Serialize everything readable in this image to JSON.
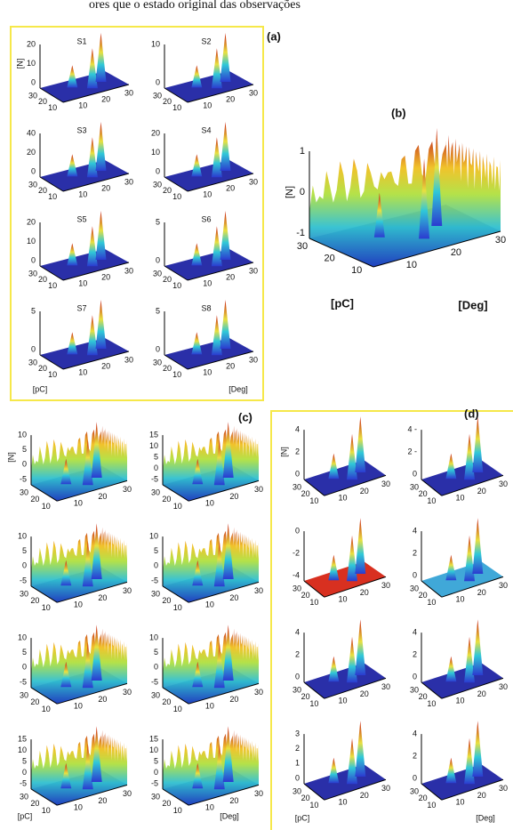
{
  "caption_fragment": "ores que o estado original das observações",
  "panels": [
    {
      "label": "(a)",
      "y_label": "[pC]",
      "x_label": "[Deg]",
      "plots": [
        {
          "title": "S1",
          "z_label": "[N]",
          "z_ticks": [
            "20",
            "10",
            "0"
          ],
          "y_ticks": [
            "30",
            "20",
            "10"
          ],
          "x_ticks": [
            "10",
            "20",
            "30"
          ]
        },
        {
          "title": "S2",
          "z_ticks": [
            "10",
            "0"
          ],
          "y_ticks": [
            "30",
            "20",
            "10"
          ],
          "x_ticks": [
            "10",
            "20",
            "30"
          ]
        },
        {
          "title": "S3",
          "z_ticks": [
            "40",
            "20",
            "0"
          ],
          "y_ticks": [
            "30",
            "20",
            "10"
          ],
          "x_ticks": [
            "10",
            "20",
            "30"
          ]
        },
        {
          "title": "S4",
          "z_ticks": [
            "20",
            "10",
            "0"
          ],
          "y_ticks": [
            "30",
            "20",
            "10"
          ],
          "x_ticks": [
            "10",
            "20",
            "30"
          ]
        },
        {
          "title": "S5",
          "z_ticks": [
            "20",
            "10",
            "0"
          ],
          "y_ticks": [
            "30",
            "20",
            "10"
          ],
          "x_ticks": [
            "10",
            "20",
            "30"
          ]
        },
        {
          "title": "S6",
          "z_ticks": [
            "5",
            "0"
          ],
          "y_ticks": [
            "30",
            "20",
            "10"
          ],
          "x_ticks": [
            "10",
            "20",
            "30"
          ]
        },
        {
          "title": "S7",
          "z_ticks": [
            "5",
            "0"
          ],
          "y_ticks": [
            "30",
            "20",
            "10"
          ],
          "x_ticks": [
            "10",
            "20",
            "30"
          ]
        },
        {
          "title": "S8",
          "z_ticks": [
            "5",
            "0"
          ],
          "y_ticks": [
            "30",
            "20",
            "10"
          ],
          "x_ticks": [
            "10",
            "20",
            "30"
          ]
        }
      ]
    },
    {
      "label": "(b)",
      "y_label": "[pC]",
      "x_label": "[Deg]",
      "plots": [
        {
          "z_label": "[N]",
          "z_ticks": [
            "1",
            "0",
            "-1"
          ],
          "y_ticks": [
            "30",
            "20",
            "10"
          ],
          "x_ticks": [
            "10",
            "20",
            "30"
          ]
        }
      ]
    },
    {
      "label": "(c)",
      "y_label": "[pC]",
      "x_label": "[Deg]",
      "plots": [
        {
          "z_label": "[N]",
          "z_ticks": [
            "10",
            "5",
            "0",
            "-5"
          ],
          "y_ticks": [
            "30",
            "20",
            "10"
          ],
          "x_ticks": [
            "10",
            "20",
            "30"
          ]
        },
        {
          "z_ticks": [
            "15",
            "10",
            "5",
            "0",
            "-5"
          ],
          "y_ticks": [
            "30",
            "20",
            "10"
          ],
          "x_ticks": [
            "10",
            "20",
            "30"
          ]
        },
        {
          "z_ticks": [
            "10",
            "5",
            "0",
            "-5"
          ],
          "y_ticks": [
            "30",
            "20",
            "10"
          ],
          "x_ticks": [
            "10",
            "20",
            "30"
          ]
        },
        {
          "z_ticks": [
            "10",
            "5",
            "0",
            "-5"
          ],
          "y_ticks": [
            "30",
            "20",
            "10"
          ],
          "x_ticks": [
            "10",
            "20",
            "30"
          ]
        },
        {
          "z_ticks": [
            "10",
            "5",
            "0",
            "-5"
          ],
          "y_ticks": [
            "30",
            "20",
            "10"
          ],
          "x_ticks": [
            "10",
            "20",
            "30"
          ]
        },
        {
          "z_ticks": [
            "10",
            "5",
            "0",
            "-5"
          ],
          "y_ticks": [
            "30",
            "20",
            "10"
          ],
          "x_ticks": [
            "10",
            "20",
            "30"
          ]
        },
        {
          "z_ticks": [
            "15",
            "10",
            "5",
            "0",
            "-5"
          ],
          "y_ticks": [
            "30",
            "20",
            "10"
          ],
          "x_ticks": [
            "10",
            "20",
            "30"
          ]
        },
        {
          "z_ticks": [
            "15",
            "10",
            "5",
            "0",
            "-5"
          ],
          "y_ticks": [
            "30",
            "20",
            "10"
          ],
          "x_ticks": [
            "10",
            "20",
            "30"
          ]
        }
      ]
    },
    {
      "label": "(d)",
      "y_label": "[pC]",
      "x_label": "[Deg]",
      "plots": [
        {
          "z_label": "[N]",
          "z_ticks": [
            "4",
            "2",
            "0"
          ],
          "y_ticks": [
            "30",
            "20",
            "10"
          ],
          "x_ticks": [
            "10",
            "20",
            "30"
          ]
        },
        {
          "z_ticks": [
            "4 -",
            "2 -",
            "0"
          ],
          "y_ticks": [
            "30",
            "20",
            "10"
          ],
          "x_ticks": [
            "10",
            "20",
            "30"
          ]
        },
        {
          "z_ticks": [
            "0",
            "-2",
            "-4"
          ],
          "y_ticks": [
            "30",
            "20",
            "10"
          ],
          "x_ticks": [
            "10",
            "20",
            "30"
          ]
        },
        {
          "z_ticks": [
            "4",
            "2",
            "0"
          ],
          "y_ticks": [
            "30",
            "20",
            "10"
          ],
          "x_ticks": [
            "10",
            "20",
            "30"
          ]
        },
        {
          "z_ticks": [
            "4",
            "2",
            "0"
          ],
          "y_ticks": [
            "30",
            "20",
            "10"
          ],
          "x_ticks": [
            "10",
            "20",
            "30"
          ]
        },
        {
          "z_ticks": [
            "4",
            "2",
            "0"
          ],
          "y_ticks": [
            "30",
            "20",
            "10"
          ],
          "x_ticks": [
            "10",
            "20",
            "30"
          ]
        },
        {
          "z_ticks": [
            "3",
            "2",
            "1",
            "0"
          ],
          "y_ticks": [
            "30",
            "20",
            "10"
          ],
          "x_ticks": [
            "10",
            "20",
            "30"
          ]
        },
        {
          "z_ticks": [
            "4",
            "2",
            "0"
          ],
          "y_ticks": [
            "30",
            "20",
            "10"
          ],
          "x_ticks": [
            "10",
            "20",
            "30"
          ]
        }
      ]
    }
  ]
}
